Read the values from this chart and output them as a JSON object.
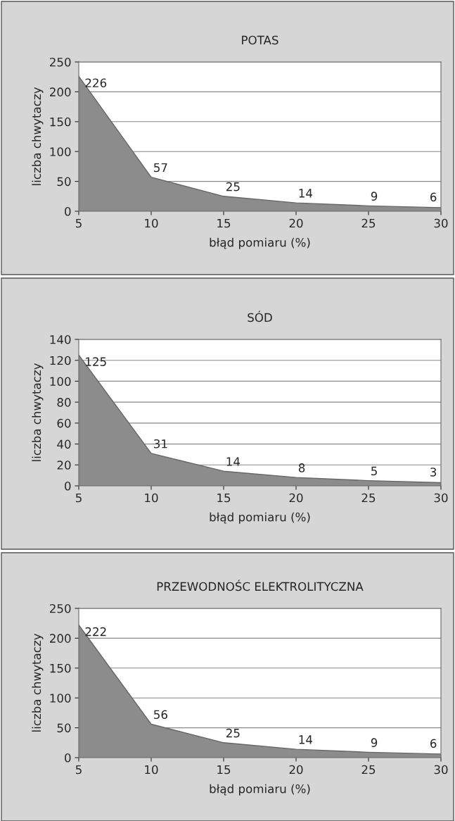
{
  "chart_data": [
    {
      "type": "area",
      "title": "POTAS",
      "xlabel": "błąd pomiaru (%)",
      "ylabel": "liczba chwytaczy",
      "x": [
        5,
        10,
        15,
        20,
        25,
        30
      ],
      "series": [
        {
          "color": "#8c8c8c",
          "values": [
            226,
            57,
            25,
            14,
            9,
            6
          ]
        }
      ],
      "xlim": [
        5,
        30
      ],
      "xticks": [
        5,
        10,
        15,
        20,
        25,
        30
      ],
      "ylim": [
        0,
        250
      ],
      "yticks": [
        0,
        50,
        100,
        150,
        200,
        250
      ],
      "grid": "y",
      "data_labels": true
    },
    {
      "type": "area",
      "title": "SÓD",
      "xlabel": "błąd pomiaru (%)",
      "ylabel": "liczba chwytaczy",
      "x": [
        5,
        10,
        15,
        20,
        25,
        30
      ],
      "series": [
        {
          "color": "#8c8c8c",
          "values": [
            125,
            31,
            14,
            8,
            5,
            3
          ]
        }
      ],
      "xlim": [
        5,
        30
      ],
      "xticks": [
        5,
        10,
        15,
        20,
        25,
        30
      ],
      "ylim": [
        0,
        140
      ],
      "yticks": [
        0,
        20,
        40,
        60,
        80,
        100,
        120,
        140
      ],
      "grid": "y",
      "data_labels": true
    },
    {
      "type": "area",
      "title": "PRZEWODNOŚC ELEKTROLITYCZNA",
      "xlabel": "błąd pomiaru (%)",
      "ylabel": "liczba chwytaczy",
      "x": [
        5,
        10,
        15,
        20,
        25,
        30
      ],
      "series": [
        {
          "color": "#8c8c8c",
          "values": [
            222,
            56,
            25,
            14,
            9,
            6
          ]
        }
      ],
      "xlim": [
        5,
        30
      ],
      "xticks": [
        5,
        10,
        15,
        20,
        25,
        30
      ],
      "ylim": [
        0,
        250
      ],
      "yticks": [
        0,
        50,
        100,
        150,
        200,
        250
      ],
      "grid": "y",
      "data_labels": true
    }
  ]
}
